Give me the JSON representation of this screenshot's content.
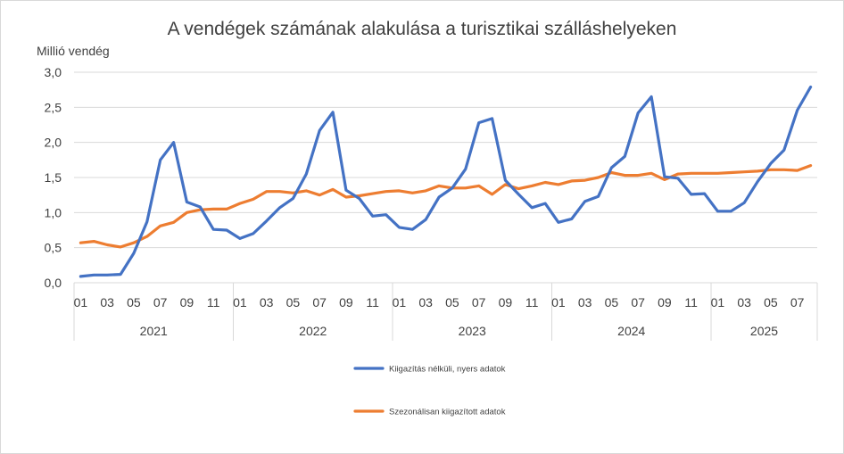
{
  "chart_data": {
    "type": "line",
    "title": "A vendégek számának alakulása a turisztikai szálláshelyeken",
    "ylabel": "Millió vendég",
    "xlabel": "",
    "ylim": [
      0,
      3
    ],
    "y_ticks": [
      "0,0",
      "0,5",
      "1,0",
      "1,5",
      "2,0",
      "2,5",
      "3,0"
    ],
    "y_tick_values": [
      0,
      0.5,
      1,
      1.5,
      2,
      2.5,
      3
    ],
    "grid": true,
    "legend_position": "bottom",
    "month_labels": [
      "01",
      "03",
      "05",
      "07",
      "09",
      "11",
      "01",
      "03",
      "05",
      "07",
      "09",
      "11",
      "01",
      "03",
      "05",
      "07",
      "09",
      "11",
      "01",
      "03",
      "05",
      "07",
      "09",
      "11",
      "01",
      "03",
      "05",
      "07"
    ],
    "month_label_index": [
      0,
      2,
      4,
      6,
      8,
      10,
      12,
      14,
      16,
      18,
      20,
      22,
      24,
      26,
      28,
      30,
      32,
      34,
      36,
      38,
      40,
      42,
      44,
      46,
      48,
      50,
      52,
      54
    ],
    "years": [
      "2021",
      "2022",
      "2023",
      "2024",
      "2025"
    ],
    "year_months": [
      12,
      12,
      12,
      12,
      8
    ],
    "series": [
      {
        "name": "Kiigazítás nélküli, nyers adatok",
        "color": "#4472c4",
        "values": [
          0.09,
          0.11,
          0.11,
          0.12,
          0.42,
          0.87,
          1.75,
          2.0,
          1.15,
          1.08,
          0.76,
          0.75,
          0.63,
          0.7,
          0.88,
          1.07,
          1.2,
          1.55,
          2.17,
          2.43,
          1.32,
          1.2,
          0.95,
          0.97,
          0.79,
          0.76,
          0.9,
          1.22,
          1.35,
          1.62,
          2.28,
          2.34,
          1.46,
          1.26,
          1.07,
          1.13,
          0.86,
          0.91,
          1.16,
          1.23,
          1.64,
          1.8,
          2.42,
          2.65,
          1.51,
          1.49,
          1.26,
          1.27,
          1.02,
          1.02,
          1.14,
          1.44,
          1.7,
          1.89,
          2.46,
          2.79
        ]
      },
      {
        "name": "Szezonálisan kiigazított adatok",
        "color": "#ed7d31",
        "values": [
          0.57,
          0.59,
          0.54,
          0.51,
          0.57,
          0.66,
          0.81,
          0.86,
          1.0,
          1.04,
          1.05,
          1.05,
          1.13,
          1.19,
          1.3,
          1.3,
          1.28,
          1.31,
          1.25,
          1.33,
          1.22,
          1.24,
          1.27,
          1.3,
          1.31,
          1.28,
          1.31,
          1.38,
          1.35,
          1.35,
          1.38,
          1.26,
          1.4,
          1.34,
          1.38,
          1.43,
          1.4,
          1.45,
          1.46,
          1.5,
          1.57,
          1.53,
          1.53,
          1.56,
          1.47,
          1.55,
          1.56,
          1.56,
          1.56,
          1.57,
          1.58,
          1.59,
          1.61,
          1.61,
          1.6,
          1.67
        ]
      }
    ]
  }
}
